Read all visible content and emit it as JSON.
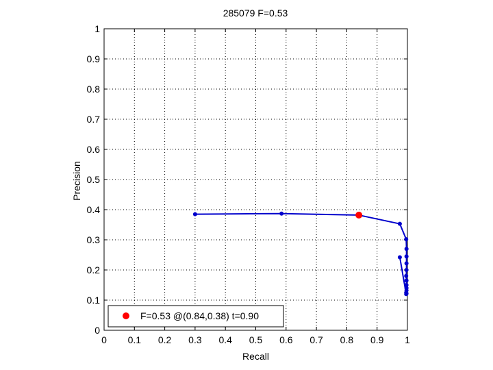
{
  "chart_data": {
    "type": "line",
    "title": "285079 F=0.53",
    "xlabel": "Recall",
    "ylabel": "Precision",
    "xlim": [
      0,
      1
    ],
    "ylim": [
      0,
      1
    ],
    "grid": true,
    "xticks": [
      "0",
      "0.1",
      "0.2",
      "0.3",
      "0.4",
      "0.5",
      "0.6",
      "0.7",
      "0.8",
      "0.9",
      "1"
    ],
    "yticks": [
      "0",
      "0.1",
      "0.2",
      "0.3",
      "0.4",
      "0.5",
      "0.6",
      "0.7",
      "0.8",
      "0.9",
      "1"
    ],
    "line_color": "#0000cc",
    "series": [
      {
        "x": [
          0.3,
          0.585,
          0.84,
          0.975,
          0.996,
          0.997,
          0.997,
          0.997,
          0.997,
          0.996,
          0.997,
          0.997,
          0.997,
          0.997,
          0.996,
          0.997,
          0.996,
          0.975
        ],
        "y": [
          0.385,
          0.387,
          0.382,
          0.353,
          0.302,
          0.27,
          0.245,
          0.222,
          0.2,
          0.18,
          0.165,
          0.15,
          0.14,
          0.132,
          0.125,
          0.122,
          0.12,
          0.242
        ]
      }
    ],
    "best_point": {
      "x": 0.84,
      "y": 0.382,
      "color": "#ff0000"
    },
    "legend": {
      "placement": "bottom-left",
      "label": "F=0.53 @(0.84,0.38) t=0.90"
    }
  }
}
